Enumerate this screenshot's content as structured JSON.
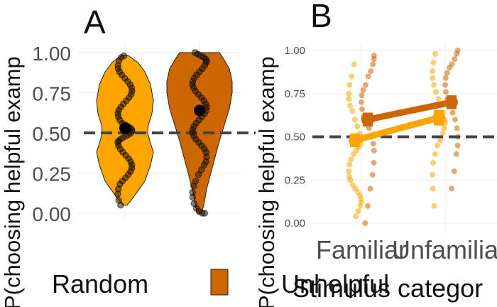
{
  "chart_data": [
    {
      "panel": "A",
      "type": "violin",
      "ylabel": "P(choosing helpful examp",
      "yticks": [
        "0.00",
        "0.25",
        "0.50",
        "0.75",
        "1.00"
      ],
      "ylim": [
        0,
        1
      ],
      "reference_line": 0.5,
      "groups": [
        {
          "name": "Random",
          "color": "#ffa500",
          "mean": 0.53,
          "error": 0.03,
          "range": [
            0.05,
            0.98
          ],
          "points": [
            0.98,
            0.97,
            0.95,
            0.92,
            0.9,
            0.88,
            0.86,
            0.84,
            0.82,
            0.8,
            0.78,
            0.76,
            0.74,
            0.72,
            0.7,
            0.68,
            0.66,
            0.64,
            0.62,
            0.6,
            0.58,
            0.56,
            0.55,
            0.54,
            0.53,
            0.52,
            0.51,
            0.5,
            0.49,
            0.48,
            0.47,
            0.46,
            0.45,
            0.44,
            0.42,
            0.4,
            0.38,
            0.36,
            0.34,
            0.32,
            0.3,
            0.28,
            0.26,
            0.24,
            0.22,
            0.2,
            0.18,
            0.15,
            0.12,
            0.08,
            0.05
          ]
        },
        {
          "name": "Unhelpful",
          "color": "#cc6600",
          "mean": 0.64,
          "error": 0.03,
          "range": [
            0.0,
            1.0
          ],
          "points": [
            1.0,
            0.99,
            0.98,
            0.97,
            0.96,
            0.95,
            0.94,
            0.92,
            0.9,
            0.88,
            0.86,
            0.84,
            0.82,
            0.8,
            0.78,
            0.76,
            0.74,
            0.72,
            0.7,
            0.68,
            0.66,
            0.64,
            0.62,
            0.6,
            0.58,
            0.56,
            0.54,
            0.52,
            0.5,
            0.48,
            0.46,
            0.44,
            0.42,
            0.4,
            0.38,
            0.35,
            0.32,
            0.3,
            0.27,
            0.24,
            0.2,
            0.17,
            0.13,
            0.1,
            0.06,
            0.03,
            0.01,
            0.0,
            0.0
          ]
        }
      ]
    },
    {
      "panel": "B",
      "type": "line",
      "ylabel": "P(choosing helpful examp",
      "xlabel": "Stimulus categor",
      "categories": [
        "Familiar",
        "Unfamilia"
      ],
      "yticks": [
        "0.00",
        "0.25",
        "0.50",
        "0.75",
        "1.00"
      ],
      "ylim": [
        0,
        1
      ],
      "reference_line": 0.5,
      "series": [
        {
          "color": "#ffa500",
          "values": [
            0.48,
            0.61
          ],
          "errors": [
            0.04,
            0.045
          ],
          "points": [
            [
              0.92,
              0.85,
              0.8,
              0.75,
              0.72,
              0.68,
              0.65,
              0.6,
              0.56,
              0.52,
              0.5,
              0.48,
              0.46,
              0.44,
              0.42,
              0.4,
              0.37,
              0.34,
              0.3,
              0.27,
              0.25,
              0.22,
              0.2,
              0.18,
              0.16,
              0.14,
              0.12,
              0.1,
              0.07,
              0.04
            ],
            [
              0.98,
              0.93,
              0.88,
              0.84,
              0.8,
              0.76,
              0.72,
              0.68,
              0.64,
              0.6,
              0.58,
              0.55,
              0.52,
              0.48,
              0.45,
              0.4,
              0.35,
              0.28,
              0.2,
              0.1
            ]
          ]
        },
        {
          "color": "#cc6600",
          "values": [
            0.6,
            0.7
          ],
          "errors": [
            0.04,
            0.04
          ],
          "points": [
            [
              0.97,
              0.95,
              0.92,
              0.88,
              0.85,
              0.8,
              0.77,
              0.74,
              0.7,
              0.66,
              0.62,
              0.58,
              0.55,
              0.5,
              0.46,
              0.42,
              0.35,
              0.28,
              0.2,
              0.1,
              0.0
            ],
            [
              1.0,
              0.98,
              0.95,
              0.92,
              0.9,
              0.87,
              0.84,
              0.8,
              0.76,
              0.72,
              0.68,
              0.64,
              0.6,
              0.55,
              0.5,
              0.45,
              0.4,
              0.3,
              0.2
            ]
          ]
        }
      ]
    }
  ],
  "legend": {
    "items": [
      {
        "label": "Random",
        "color": "#ffa500"
      },
      {
        "label": "Unhelpful",
        "color": "#cc6600"
      }
    ]
  }
}
